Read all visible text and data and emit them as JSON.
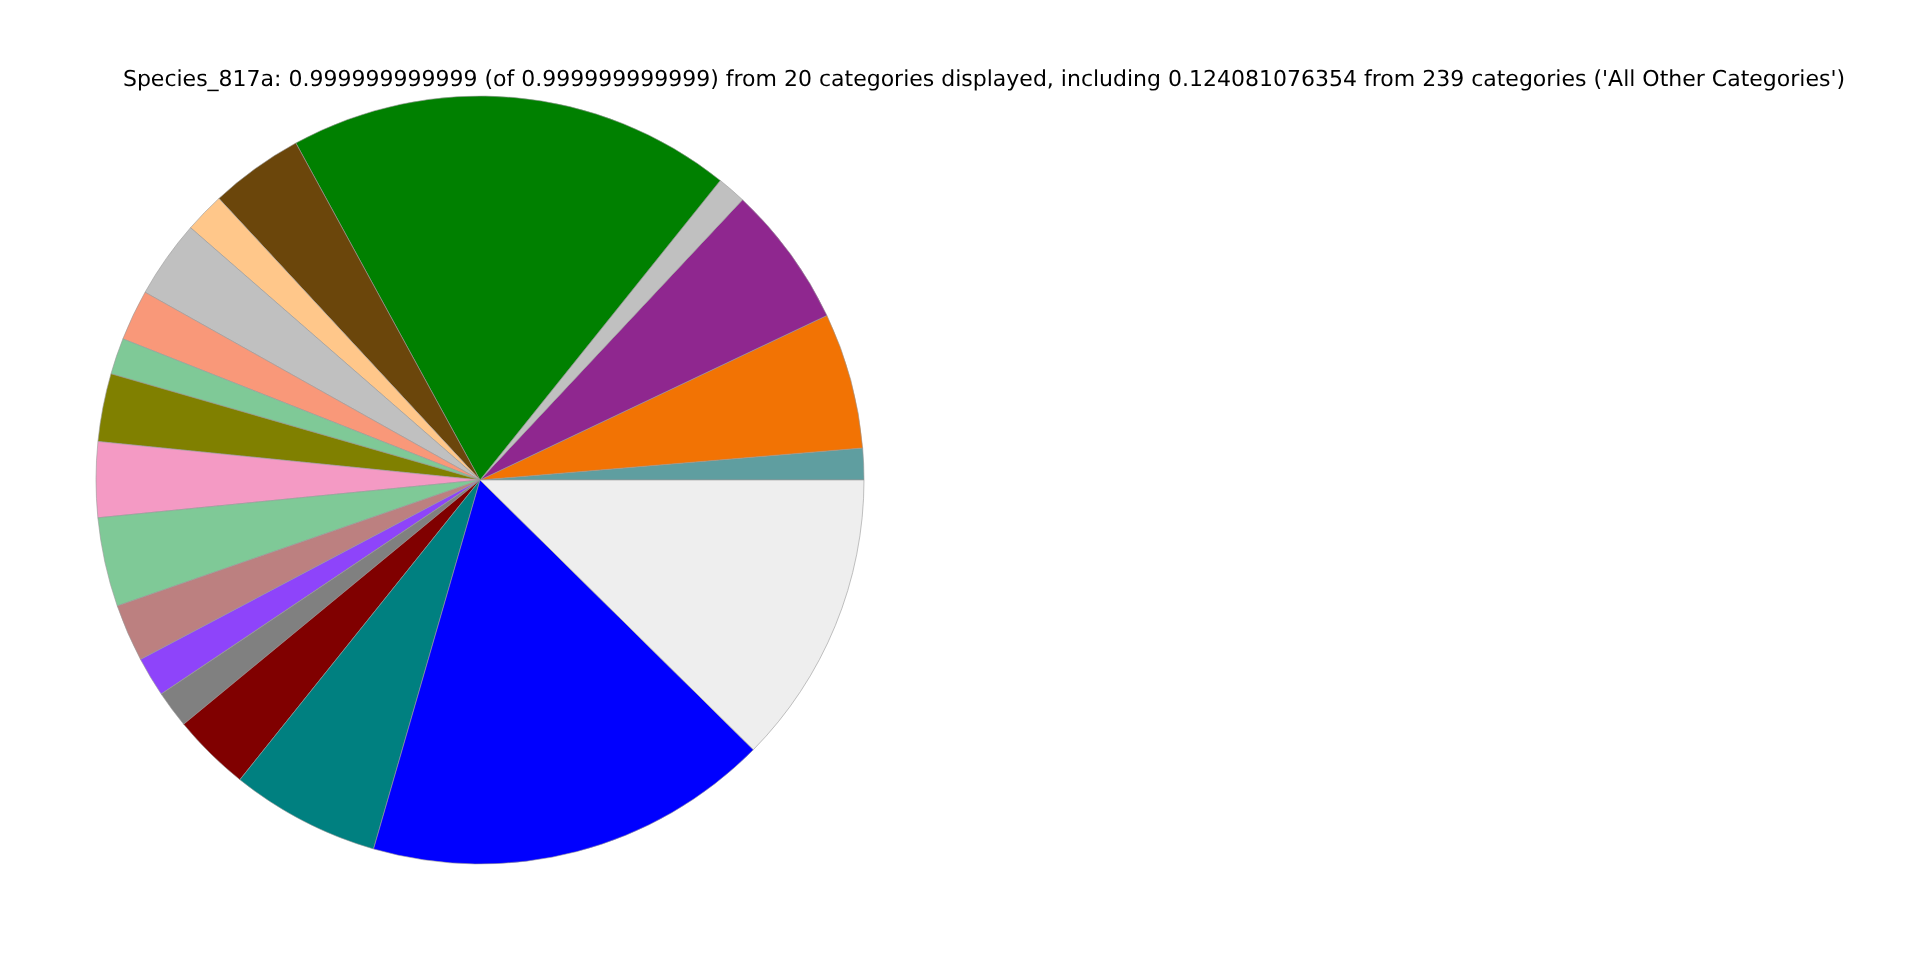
{
  "chart_data": {
    "type": "pie",
    "title": "Species_817a: 0.999999999999 (of 0.999999999999) from 20 categories displayed, including 0.124081076354 from 239 categories ('All Other Categories')",
    "categories": [
      null,
      null,
      null,
      null,
      null,
      null,
      null,
      null,
      null,
      null,
      null,
      null,
      null,
      null,
      null,
      null,
      null,
      null,
      null,
      null
    ],
    "values": [
      1.33,
      5.72,
      5.97,
      1.22,
      18.72,
      3.94,
      1.69,
      3.28,
      2.14,
      1.53,
      2.86,
      3.17,
      3.75,
      2.42,
      1.67,
      1.56,
      3.28,
      6.28,
      17.08,
      12.39
    ],
    "colors": [
      "#5f9ea0",
      "#f27304",
      "#8f278f",
      "#c0c0c0",
      "#008000",
      "#6b460b",
      "#ffc78a",
      "#c0c0c0",
      "#f99879",
      "#7fc997",
      "#808000",
      "#f49ac4",
      "#7fc997",
      "#bc8080",
      "#8e44fa",
      "#808080",
      "#800000",
      "#008080",
      "#0000ff",
      "#eeeeee"
    ]
  }
}
